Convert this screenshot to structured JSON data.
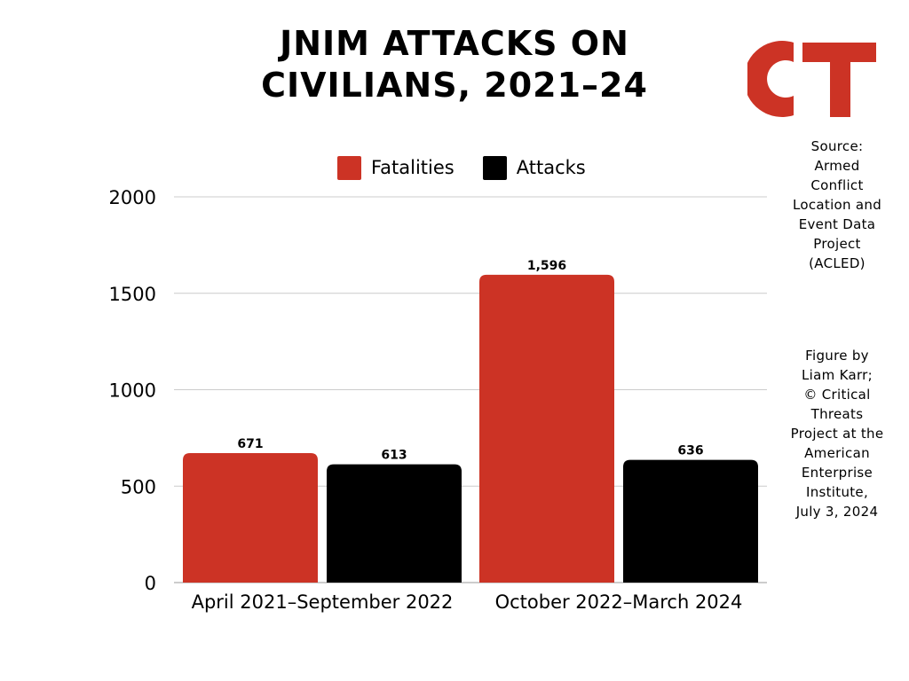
{
  "title_lines": [
    "JNIM ATTACKS ON",
    "CIVILIANS, 2021–24"
  ],
  "logo": {
    "text": "CT",
    "color": "#cc3325"
  },
  "legend": [
    {
      "label": "Fatalities",
      "color": "#cc3325"
    },
    {
      "label": "Attacks",
      "color": "#000000"
    }
  ],
  "source_lines": [
    "Source:",
    "Armed",
    "Conflict",
    "Location and",
    "Event Data",
    "Project",
    "(ACLED)"
  ],
  "credit_lines": [
    "Figure by",
    "Liam Karr;",
    "© Critical",
    "Threats",
    "Project at the",
    "American",
    "Enterprise",
    "Institute,",
    "July 3, 2024"
  ],
  "chart_data": {
    "type": "bar",
    "title": "JNIM ATTACKS ON CIVILIANS, 2021–24",
    "categories": [
      "April 2021–September 2022",
      "October 2022–March 2024"
    ],
    "series": [
      {
        "name": "Fatalities",
        "color": "#cc3325",
        "values": [
          671,
          1596
        ],
        "labels": [
          "671",
          "1,596"
        ]
      },
      {
        "name": "Attacks",
        "color": "#000000",
        "values": [
          613,
          636
        ],
        "labels": [
          "613",
          "636"
        ]
      }
    ],
    "ylim": [
      0,
      2000
    ],
    "yticks": [
      0,
      500,
      1000,
      1500,
      2000
    ],
    "grid": true,
    "legend_position": "top"
  }
}
